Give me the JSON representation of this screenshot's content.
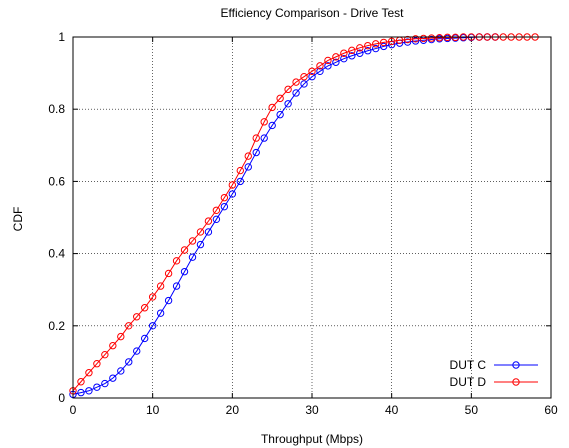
{
  "chart_data": {
    "type": "line",
    "title": "Efficiency Comparison - Drive Test",
    "xlabel": "Throughput (Mbps)",
    "ylabel": "CDF",
    "xlim": [
      0,
      60
    ],
    "ylim": [
      0,
      1
    ],
    "xticks": [
      "0",
      "10",
      "20",
      "30",
      "40",
      "50",
      "60"
    ],
    "yticks": [
      "0",
      "0.2",
      "0.4",
      "0.6",
      "0.8",
      "1"
    ],
    "grid": true,
    "legend_position": "bottom-right",
    "series": [
      {
        "name": "DUT C",
        "color": "#0000ff",
        "marker": "circle",
        "x": [
          0,
          1,
          2,
          3,
          4,
          5,
          6,
          7,
          8,
          9,
          10,
          11,
          12,
          13,
          14,
          15,
          16,
          17,
          18,
          19,
          20,
          21,
          22,
          23,
          24,
          25,
          26,
          27,
          28,
          29,
          30,
          31,
          32,
          33,
          34,
          35,
          36,
          37,
          38,
          39,
          40,
          41,
          42,
          43,
          44,
          45,
          46,
          47,
          48,
          49,
          50,
          51,
          52,
          53
        ],
        "y": [
          0.01,
          0.015,
          0.02,
          0.03,
          0.04,
          0.055,
          0.075,
          0.1,
          0.13,
          0.165,
          0.2,
          0.235,
          0.27,
          0.31,
          0.35,
          0.39,
          0.425,
          0.46,
          0.495,
          0.53,
          0.565,
          0.6,
          0.64,
          0.68,
          0.72,
          0.755,
          0.785,
          0.815,
          0.845,
          0.87,
          0.89,
          0.905,
          0.92,
          0.93,
          0.94,
          0.948,
          0.955,
          0.962,
          0.968,
          0.974,
          0.979,
          0.983,
          0.986,
          0.989,
          0.991,
          0.993,
          0.995,
          0.996,
          0.997,
          0.998,
          0.999,
          1.0,
          1.0,
          1.0
        ]
      },
      {
        "name": "DUT D",
        "color": "#ff0000",
        "marker": "circle",
        "x": [
          0,
          1,
          2,
          3,
          4,
          5,
          6,
          7,
          8,
          9,
          10,
          11,
          12,
          13,
          14,
          15,
          16,
          17,
          18,
          19,
          20,
          21,
          22,
          23,
          24,
          25,
          26,
          27,
          28,
          29,
          30,
          31,
          32,
          33,
          34,
          35,
          36,
          37,
          38,
          39,
          40,
          41,
          42,
          43,
          44,
          45,
          46,
          47,
          48,
          49,
          50,
          51,
          52,
          53,
          54,
          55,
          56,
          57,
          58
        ],
        "y": [
          0.02,
          0.045,
          0.07,
          0.095,
          0.12,
          0.145,
          0.17,
          0.2,
          0.225,
          0.25,
          0.28,
          0.31,
          0.345,
          0.38,
          0.41,
          0.435,
          0.46,
          0.49,
          0.52,
          0.555,
          0.59,
          0.63,
          0.67,
          0.72,
          0.765,
          0.805,
          0.83,
          0.855,
          0.875,
          0.89,
          0.905,
          0.92,
          0.935,
          0.945,
          0.955,
          0.963,
          0.97,
          0.976,
          0.981,
          0.985,
          0.988,
          0.991,
          0.993,
          0.995,
          0.996,
          0.997,
          0.998,
          0.999,
          0.999,
          1.0,
          1.0,
          1.0,
          1.0,
          1.0,
          1.0,
          1.0,
          1.0,
          1.0,
          1.0
        ]
      }
    ]
  }
}
